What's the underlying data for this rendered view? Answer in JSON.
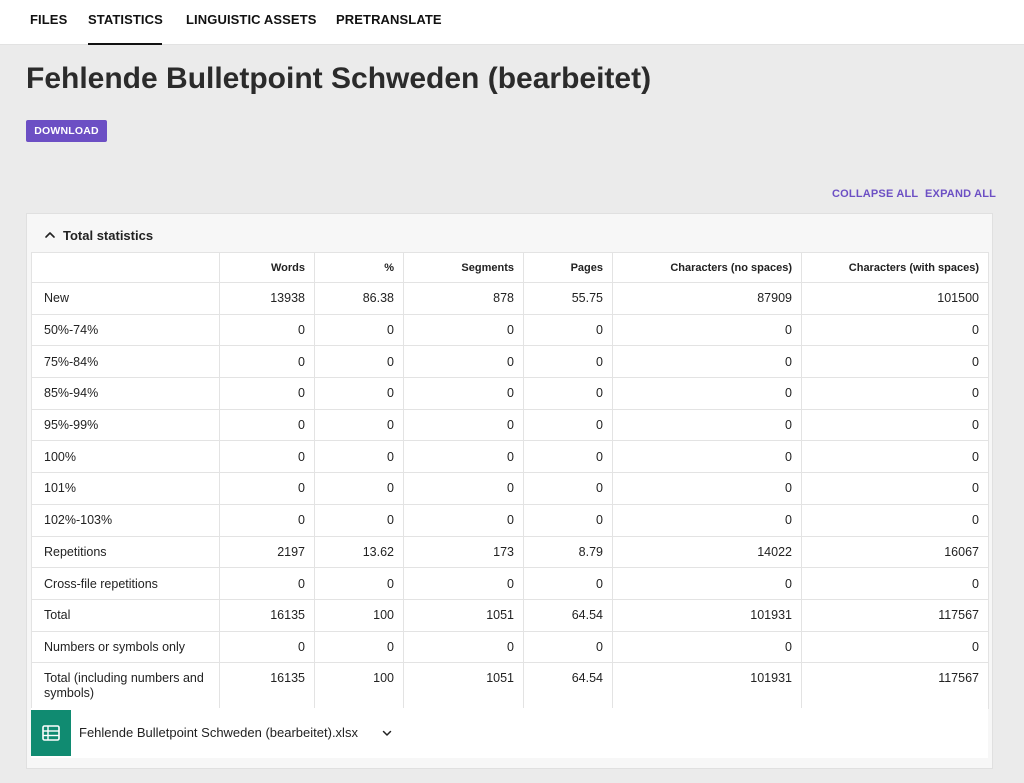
{
  "nav": {
    "tabs": [
      {
        "label": "FILES"
      },
      {
        "label": "STATISTICS"
      },
      {
        "label": "LINGUISTIC ASSETS"
      },
      {
        "label": "PRETRANSLATE"
      }
    ],
    "active_tab": "STATISTICS"
  },
  "page": {
    "title": "Fehlende Bulletpoint Schweden (bearbeitet)",
    "download_label": "DOWNLOAD",
    "collapse_all_label": "COLLAPSE ALL",
    "expand_all_label": "EXPAND ALL"
  },
  "stats": {
    "section_title": "Total statistics",
    "columns": [
      "",
      "Words",
      "%",
      "Segments",
      "Pages",
      "Characters (no spaces)",
      "Characters (with spaces)"
    ],
    "rows": [
      [
        "New",
        "13938",
        "86.38",
        "878",
        "55.75",
        "87909",
        "101500"
      ],
      [
        "50%-74%",
        "0",
        "0",
        "0",
        "0",
        "0",
        "0"
      ],
      [
        "75%-84%",
        "0",
        "0",
        "0",
        "0",
        "0",
        "0"
      ],
      [
        "85%-94%",
        "0",
        "0",
        "0",
        "0",
        "0",
        "0"
      ],
      [
        "95%-99%",
        "0",
        "0",
        "0",
        "0",
        "0",
        "0"
      ],
      [
        "100%",
        "0",
        "0",
        "0",
        "0",
        "0",
        "0"
      ],
      [
        "101%",
        "0",
        "0",
        "0",
        "0",
        "0",
        "0"
      ],
      [
        "102%-103%",
        "0",
        "0",
        "0",
        "0",
        "0",
        "0"
      ],
      [
        "Repetitions",
        "2197",
        "13.62",
        "173",
        "8.79",
        "14022",
        "16067"
      ],
      [
        "Cross-file repetitions",
        "0",
        "0",
        "0",
        "0",
        "0",
        "0"
      ],
      [
        "Total",
        "16135",
        "100",
        "1051",
        "64.54",
        "101931",
        "117567"
      ],
      [
        "Numbers or symbols only",
        "0",
        "0",
        "0",
        "0",
        "0",
        "0"
      ],
      [
        "Total (including numbers and symbols)",
        "16135",
        "100",
        "1051",
        "64.54",
        "101931",
        "117567"
      ]
    ]
  },
  "file": {
    "name": "Fehlende Bulletpoint Schweden (bearbeitet).xlsx",
    "icon": "spreadsheet-icon",
    "icon_color": "#108b71"
  },
  "colors": {
    "accent": "#6c4fc4",
    "background": "#ebebeb"
  }
}
